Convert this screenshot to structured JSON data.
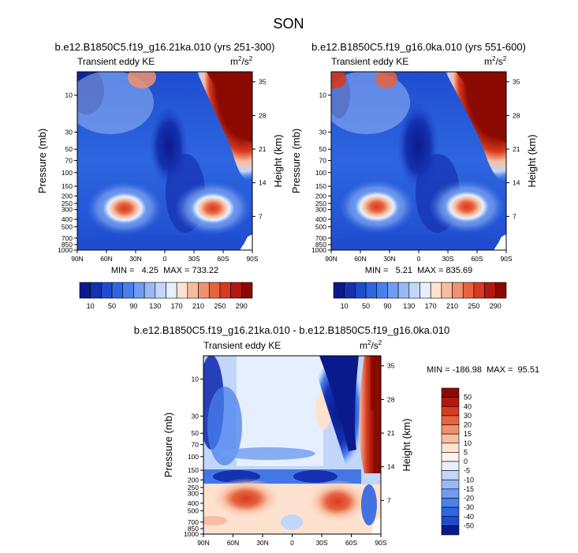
{
  "figure": {
    "season_title": "SON",
    "units_label": "m",
    "units_sup_1": "2",
    "units_sep": "/s",
    "units_sup_2": "2",
    "colors": {
      "dark_red": "#8B0A00",
      "red": "#D73A20",
      "white": "#FFFFFF",
      "blue": "#2E5FD9",
      "dark_blue": "#0A1A8C"
    }
  },
  "chart_data": [
    {
      "type": "contour",
      "title": "b.e12.B1850C5.f19_g16.21ka.010 (yrs 251-300)",
      "left_label": "Transient eddy KE",
      "units": "m2/s2",
      "ylabel": "Pressure (mb)",
      "ylabel_right": "Height (km)",
      "x_ticks": [
        "90N",
        "60N",
        "30N",
        "0",
        "30S",
        "60S",
        "90S"
      ],
      "x_values": [
        90,
        60,
        30,
        0,
        -30,
        -60,
        -90
      ],
      "y_ticks": [
        "10",
        "30",
        "50",
        "70",
        "100",
        "150",
        "200",
        "250",
        "300",
        "400",
        "500",
        "700",
        "850",
        "1000"
      ],
      "y_values": [
        10,
        30,
        50,
        70,
        100,
        150,
        200,
        250,
        300,
        400,
        500,
        700,
        850,
        1000
      ],
      "y_right_ticks": [
        "35",
        "28",
        "21",
        "14",
        "7"
      ],
      "y_right_values": [
        35,
        28,
        21,
        14,
        7
      ],
      "ylim": [
        1000,
        5
      ],
      "min_text": "MIN =   4.25  MAX = 733.22",
      "min": 4.25,
      "max": 733.22,
      "features": [
        {
          "name": "northern midlatitude jet maximum",
          "lat": 41,
          "p": 280,
          "value": 290
        },
        {
          "name": "southern midlatitude jet maximum",
          "lat": -48,
          "p": 290,
          "value": 290
        },
        {
          "name": "southern stratospheric polar maximum",
          "lat": -78,
          "p": 10,
          "value": 733
        }
      ]
    },
    {
      "type": "contour",
      "title": "b.e12.B1850C5.f19_g16.0ka.010 (yrs 551-600)",
      "left_label": "Transient eddy KE",
      "units": "m2/s2",
      "ylabel": "Pressure (mb)",
      "ylabel_right": "Height (km)",
      "x_ticks": [
        "90N",
        "60N",
        "30N",
        "0",
        "30S",
        "60S",
        "90S"
      ],
      "x_values": [
        90,
        60,
        30,
        0,
        -30,
        -60,
        -90
      ],
      "y_ticks": [
        "10",
        "30",
        "50",
        "70",
        "100",
        "150",
        "200",
        "250",
        "300",
        "400",
        "500",
        "700",
        "850",
        "1000"
      ],
      "y_values": [
        10,
        30,
        50,
        70,
        100,
        150,
        200,
        250,
        300,
        400,
        500,
        700,
        850,
        1000
      ],
      "y_right_ticks": [
        "35",
        "28",
        "21",
        "14",
        "7"
      ],
      "y_right_values": [
        35,
        28,
        21,
        14,
        7
      ],
      "ylim": [
        1000,
        5
      ],
      "min_text": "MIN =   5.21  MAX = 835.69",
      "min": 5.21,
      "max": 835.69,
      "features": [
        {
          "name": "northern midlatitude jet maximum",
          "lat": 42,
          "p": 280,
          "value": 290
        },
        {
          "name": "southern midlatitude jet maximum",
          "lat": -45,
          "p": 270,
          "value": 290
        },
        {
          "name": "southern stratospheric polar maximum",
          "lat": -78,
          "p": 10,
          "value": 835
        }
      ]
    },
    {
      "type": "contour",
      "title": "b.e12.B1850C5.f19_g16.21ka.010 - b.e12.B1850C5.f19_g16.0ka.010",
      "left_label": "Transient eddy KE",
      "units": "m2/s2",
      "ylabel": "Pressure (mb)",
      "ylabel_right": "Height (km)",
      "x_ticks": [
        "90N",
        "60N",
        "30N",
        "0",
        "30S",
        "60S",
        "90S"
      ],
      "x_values": [
        90,
        60,
        30,
        0,
        -30,
        -60,
        -90
      ],
      "y_ticks": [
        "10",
        "30",
        "50",
        "70",
        "100",
        "150",
        "200",
        "250",
        "300",
        "400",
        "500",
        "700",
        "850",
        "1000"
      ],
      "y_values": [
        10,
        30,
        50,
        70,
        100,
        150,
        200,
        250,
        300,
        400,
        500,
        700,
        850,
        1000
      ],
      "y_right_ticks": [
        "35",
        "28",
        "21",
        "14",
        "7"
      ],
      "y_right_values": [
        35,
        28,
        21,
        14,
        7
      ],
      "ylim": [
        1000,
        5
      ],
      "min_text": "MIN = -186.98  MAX =  95.51",
      "min": -186.98,
      "max": 95.51,
      "features": [
        {
          "name": "northern positive anomaly",
          "lat": 30,
          "p": 380,
          "value": 40
        },
        {
          "name": "southern positive anomaly",
          "lat": -58,
          "p": 420,
          "value": 40
        },
        {
          "name": "southern stratospheric negative anomaly",
          "lat": -48,
          "p": 15,
          "value": -186
        },
        {
          "name": "southern stratospheric positive anomaly",
          "lat": -82,
          "p": 10,
          "value": 95
        }
      ]
    }
  ],
  "colorbar_abs": {
    "labels": [
      "10",
      "50",
      "90",
      "130",
      "170",
      "210",
      "250",
      "290"
    ],
    "levels": [
      10,
      30,
      50,
      70,
      90,
      110,
      130,
      150,
      170,
      190,
      210,
      230,
      250,
      270,
      290
    ],
    "colors": [
      "#0a1a8c",
      "#1531b0",
      "#1f4ccf",
      "#2e66e0",
      "#4a80ec",
      "#6f9cf2",
      "#98b9f6",
      "#c2d6fa",
      "#e6efff",
      "#fde2d0",
      "#f8bda1",
      "#f1926f",
      "#e6633f",
      "#d73a20",
      "#b3180e",
      "#8b0a00"
    ]
  },
  "colorbar_diff": {
    "labels": [
      "50",
      "40",
      "30",
      "20",
      "15",
      "10",
      "5",
      "0",
      "-5",
      "-10",
      "-15",
      "-20",
      "-30",
      "-40",
      "-50"
    ],
    "levels": [
      50,
      40,
      30,
      20,
      15,
      10,
      5,
      0,
      -5,
      -10,
      -15,
      -20,
      -30,
      -40,
      -50
    ],
    "colors": [
      "#8b0a00",
      "#b3180e",
      "#d73a20",
      "#e6633f",
      "#f1926f",
      "#f8bda1",
      "#fde2d0",
      "#fff3ea",
      "#e6efff",
      "#c2d6fa",
      "#98b9f6",
      "#6f9cf2",
      "#4a80ec",
      "#2e66e0",
      "#1f4ccf",
      "#0a1a8c"
    ]
  }
}
